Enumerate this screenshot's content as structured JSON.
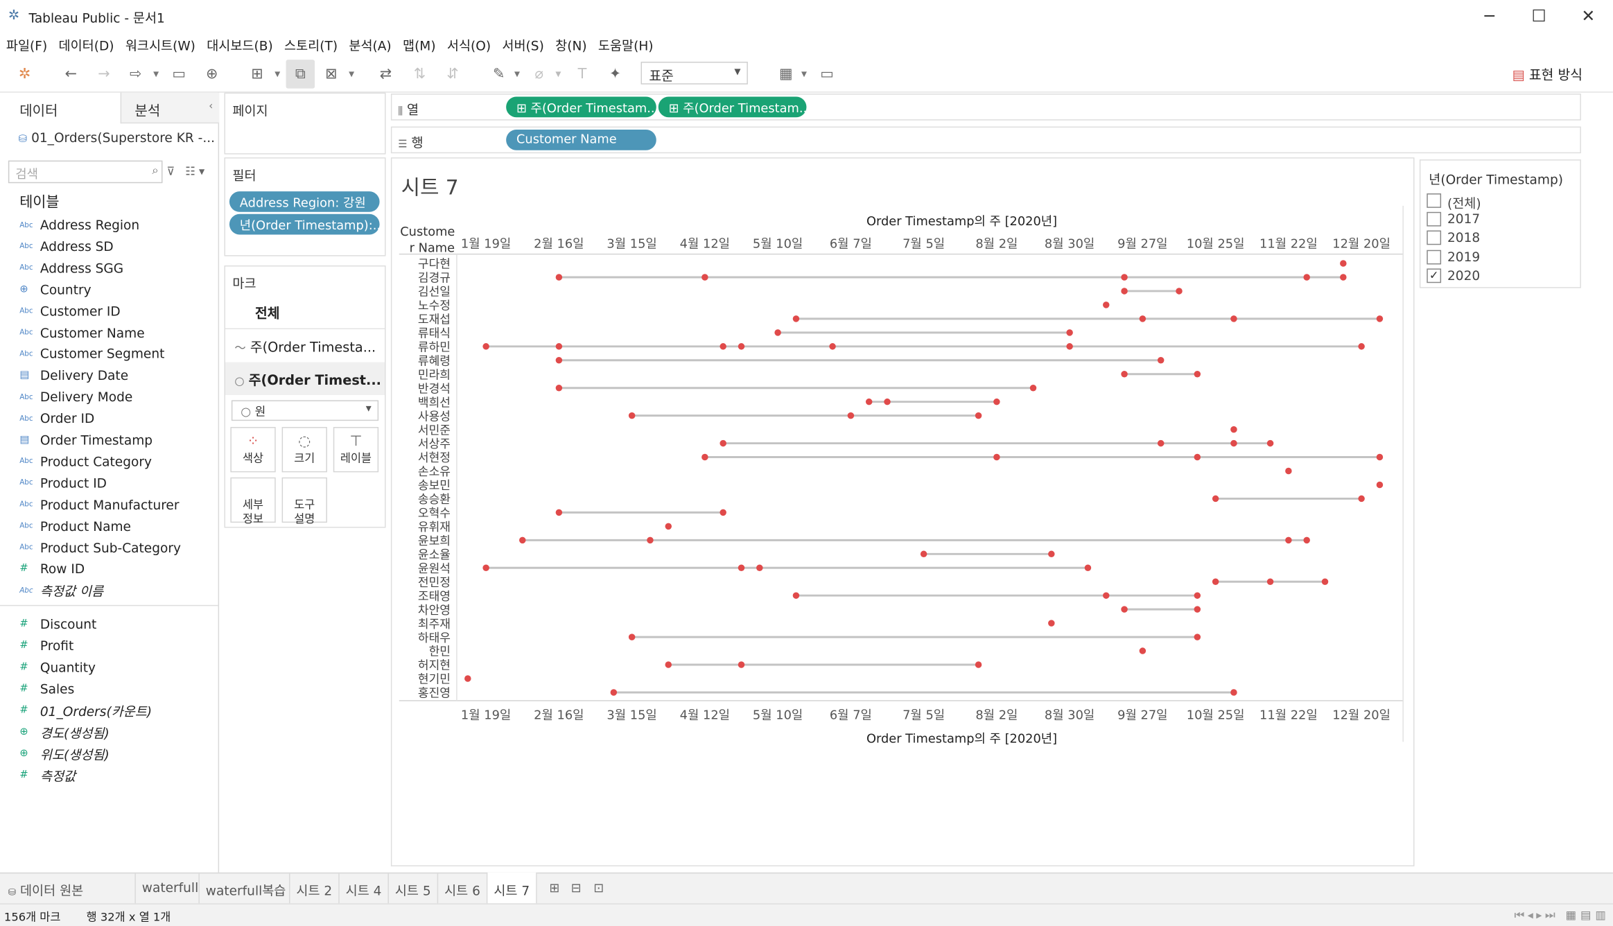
{
  "window": {
    "title": "Tableau Public - 문서1"
  },
  "menu": [
    "파일(F)",
    "데이터(D)",
    "워크시트(W)",
    "대시보드(B)",
    "스토리(T)",
    "분석(A)",
    "맵(M)",
    "서식(O)",
    "서버(S)",
    "창(N)",
    "도움말(H)"
  ],
  "toolbar": {
    "fit_value": "표준",
    "show_me_label": "표현 방식"
  },
  "data_pane": {
    "tab_data": "데이터",
    "tab_analysis": "분석",
    "datasource": "01_Orders(Superstore KR -...",
    "search_placeholder": "검색",
    "tables_label": "테이블",
    "dimensions": [
      {
        "name": "Address Region",
        "type": "abc"
      },
      {
        "name": "Address SD",
        "type": "abc"
      },
      {
        "name": "Address SGG",
        "type": "abc"
      },
      {
        "name": "Country",
        "type": "globe"
      },
      {
        "name": "Customer ID",
        "type": "abc"
      },
      {
        "name": "Customer Name",
        "type": "abc"
      },
      {
        "name": "Customer Segment",
        "type": "abc"
      },
      {
        "name": "Delivery Date",
        "type": "calendar"
      },
      {
        "name": "Delivery Mode",
        "type": "abc"
      },
      {
        "name": "Order ID",
        "type": "abc"
      },
      {
        "name": "Order Timestamp",
        "type": "calendar"
      },
      {
        "name": "Product Category",
        "type": "abc"
      },
      {
        "name": "Product ID",
        "type": "abc"
      },
      {
        "name": "Product Manufacturer",
        "type": "abc"
      },
      {
        "name": "Product Name",
        "type": "abc"
      },
      {
        "name": "Product Sub-Category",
        "type": "abc"
      },
      {
        "name": "Row ID",
        "type": "hash"
      },
      {
        "name": "측정값 이름",
        "type": "abc",
        "italic": true
      }
    ],
    "measures": [
      {
        "name": "Discount",
        "type": "hash"
      },
      {
        "name": "Profit",
        "type": "hash"
      },
      {
        "name": "Quantity",
        "type": "hash"
      },
      {
        "name": "Sales",
        "type": "hash"
      },
      {
        "name": "01_Orders(카운트)",
        "type": "hash",
        "italic": true
      },
      {
        "name": "경도(생성됨)",
        "type": "globe",
        "italic": true
      },
      {
        "name": "위도(생성됨)",
        "type": "globe",
        "italic": true
      },
      {
        "name": "측정값",
        "type": "hash",
        "italic": true
      }
    ]
  },
  "pages_card": {
    "title": "페이지"
  },
  "filters_card": {
    "title": "필터",
    "pills": [
      "Address Region: 강원",
      "년(Order Timestamp):.."
    ]
  },
  "marks_card": {
    "title": "마크",
    "all_label": "전체",
    "layer1": "주(Order Timesta...",
    "layer2": "주(Order Timest...",
    "mark_type": "원",
    "buttons": {
      "color": "색상",
      "size": "크기",
      "label": "레이블",
      "detail": "세부\n정보",
      "tooltip": "도구\n설명"
    }
  },
  "shelves": {
    "columns_label": "열",
    "rows_label": "행",
    "column_pills": [
      "주(Order Timestam..",
      "주(Order Timestam.."
    ],
    "row_pills": [
      "Customer Name"
    ]
  },
  "sheet": {
    "title": "시트 7",
    "row_header": "Customer Name",
    "row_header_line1": "Custome",
    "row_header_line2": "r Name",
    "top_axis_title": "Order Timestamp의 주 [2020년]",
    "bottom_axis_title": "Order Timestamp의 주 [2020년]"
  },
  "year_filter": {
    "title": "년(Order Timestamp)",
    "options": [
      {
        "label": "(전체)",
        "checked": false
      },
      {
        "label": "2017",
        "checked": false
      },
      {
        "label": "2018",
        "checked": false
      },
      {
        "label": "2019",
        "checked": false
      },
      {
        "label": "2020",
        "checked": true
      }
    ]
  },
  "chart_data": {
    "type": "scatter",
    "subtype": "dumbbell (dot + connecting line per customer)",
    "x_unit": "week of 2020 (week starting date)",
    "xlabel": "Order Timestamp의 주 [2020년]",
    "ylabel": "Customer Name",
    "x_ticks": [
      {
        "label": "1월 19일",
        "week": 3
      },
      {
        "label": "2월 16일",
        "week": 7
      },
      {
        "label": "3월 15일",
        "week": 11
      },
      {
        "label": "4월 12일",
        "week": 15
      },
      {
        "label": "5월 10일",
        "week": 19
      },
      {
        "label": "6월 7일",
        "week": 23
      },
      {
        "label": "7월 5일",
        "week": 27
      },
      {
        "label": "8월 2일",
        "week": 31
      },
      {
        "label": "8월 30일",
        "week": 35
      },
      {
        "label": "9월 27일",
        "week": 39
      },
      {
        "label": "10월 25일",
        "week": 43
      },
      {
        "label": "11월 22일",
        "week": 47
      },
      {
        "label": "12월 20일",
        "week": 51
      }
    ],
    "xlim": [
      1,
      53
    ],
    "dot_color": "#e04a4a",
    "line_color": "#c3c3c3",
    "rows": [
      {
        "name": "구다현",
        "weeks": [
          50
        ]
      },
      {
        "name": "김경규",
        "weeks": [
          7,
          15,
          38,
          48,
          50
        ]
      },
      {
        "name": "김선일",
        "weeks": [
          38,
          41
        ]
      },
      {
        "name": "노수정",
        "weeks": [
          37
        ]
      },
      {
        "name": "도재섭",
        "weeks": [
          20,
          39,
          44,
          52
        ]
      },
      {
        "name": "류태식",
        "weeks": [
          19,
          35
        ]
      },
      {
        "name": "류하민",
        "weeks": [
          3,
          7,
          16,
          17,
          22,
          35,
          51
        ]
      },
      {
        "name": "류혜령",
        "weeks": [
          7,
          40
        ]
      },
      {
        "name": "민라희",
        "weeks": [
          38,
          42
        ]
      },
      {
        "name": "반경석",
        "weeks": [
          7,
          33
        ]
      },
      {
        "name": "백희선",
        "weeks": [
          24,
          25,
          31
        ]
      },
      {
        "name": "사용성",
        "weeks": [
          11,
          23,
          30
        ]
      },
      {
        "name": "서민준",
        "weeks": [
          44
        ]
      },
      {
        "name": "서상주",
        "weeks": [
          16,
          40,
          44,
          46
        ]
      },
      {
        "name": "서현정",
        "weeks": [
          15,
          31,
          42,
          52
        ]
      },
      {
        "name": "손소유",
        "weeks": [
          47
        ]
      },
      {
        "name": "송보민",
        "weeks": [
          52
        ]
      },
      {
        "name": "송승환",
        "weeks": [
          43,
          51
        ]
      },
      {
        "name": "오혁수",
        "weeks": [
          7,
          16
        ]
      },
      {
        "name": "유휘재",
        "weeks": [
          13
        ]
      },
      {
        "name": "윤보희",
        "weeks": [
          5,
          12,
          47,
          48
        ]
      },
      {
        "name": "윤소율",
        "weeks": [
          27,
          34
        ]
      },
      {
        "name": "윤원석",
        "weeks": [
          3,
          17,
          18,
          36
        ]
      },
      {
        "name": "전민정",
        "weeks": [
          43,
          46,
          49
        ]
      },
      {
        "name": "조태영",
        "weeks": [
          20,
          37,
          42
        ]
      },
      {
        "name": "차안영",
        "weeks": [
          38,
          42
        ]
      },
      {
        "name": "최주재",
        "weeks": [
          34
        ]
      },
      {
        "name": "하태우",
        "weeks": [
          11,
          42
        ]
      },
      {
        "name": "한민",
        "weeks": [
          39
        ]
      },
      {
        "name": "허지현",
        "weeks": [
          13,
          17,
          30
        ]
      },
      {
        "name": "현기민",
        "weeks": [
          2
        ]
      },
      {
        "name": "홍진영",
        "weeks": [
          10,
          44
        ]
      }
    ]
  },
  "sheet_tabs": {
    "datasource_tab": "데이터 원본",
    "tabs": [
      "waterfull",
      "waterfull복습",
      "시트 2",
      "시트 4",
      "시트 5",
      "시트 6",
      "시트 7"
    ],
    "active": "시트 7"
  },
  "status": {
    "marks": "156개 마크",
    "dims": "행 32개 x 열 1개"
  }
}
